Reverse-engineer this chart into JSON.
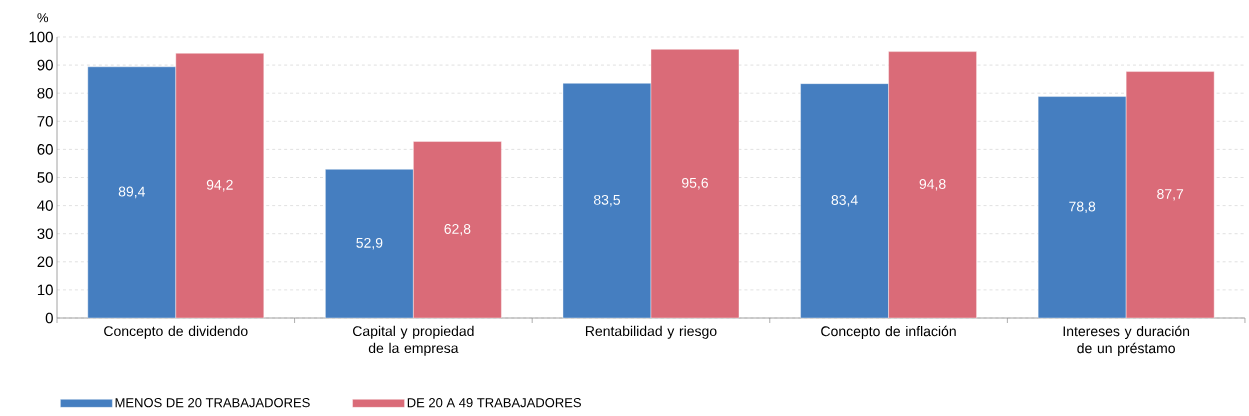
{
  "chart_data": {
    "type": "bar",
    "ylabel": "%",
    "categories": [
      "Concepto de dividendo",
      "Capital y propiedad de la empresa",
      "Rentabilidad y riesgo",
      "Concepto de inflación",
      "Intereses y duración de un préstamo"
    ],
    "series": [
      {
        "name": "MENOS DE 20 TRABAJADORES",
        "color": "#457ec0",
        "values": [
          89.4,
          52.9,
          83.5,
          83.4,
          78.8
        ],
        "value_labels": [
          "89,4",
          "52,9",
          "83,5",
          "83,4",
          "78,8"
        ]
      },
      {
        "name": "DE 20 A 49 TRABAJADORES",
        "color": "#da6b78",
        "values": [
          94.2,
          62.8,
          95.6,
          94.8,
          87.7
        ],
        "value_labels": [
          "94,2",
          "62,8",
          "95,6",
          "94,8",
          "87,7"
        ]
      }
    ],
    "ylim": [
      0,
      100
    ],
    "yticks": [
      0,
      10,
      20,
      30,
      40,
      50,
      60,
      70,
      80,
      90,
      100
    ],
    "grid": "y",
    "legend": "bottom"
  }
}
